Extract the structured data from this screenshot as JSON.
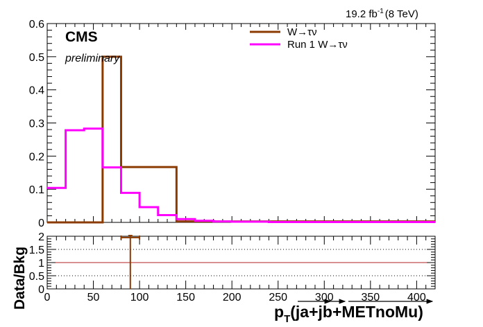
{
  "header": {
    "lumi_value": "19.2 fb",
    "lumi_exp": "-1",
    "lumi_energy": "(8 TeV)"
  },
  "labels": {
    "experiment": "CMS",
    "status": "preliminary"
  },
  "colors": {
    "series1": "#8b3a00",
    "series2": "#ff00ff",
    "ratio_line": "#b22222",
    "axis": "#000000"
  },
  "chart_data": [
    {
      "type": "histogram",
      "panel": "main",
      "x_edges": [
        0,
        20,
        40,
        60,
        80,
        100,
        120,
        140,
        160,
        180,
        200,
        220,
        240,
        260,
        280,
        300,
        320,
        340,
        360,
        380,
        400,
        420
      ],
      "xlim": [
        0,
        420
      ],
      "ylim": [
        0,
        0.6
      ],
      "yticks": [
        0,
        0.1,
        0.2,
        0.3,
        0.4,
        0.5,
        0.6
      ],
      "ytick_labels": [
        "0",
        "0.1",
        "0.2",
        "0.3",
        "0.4",
        "0.5",
        "0.6"
      ],
      "legend_position": "top-right",
      "series": [
        {
          "name": "W→τν",
          "color": "#8b3a00",
          "values": [
            0,
            0,
            0,
            0.5,
            0.167,
            0.167,
            0.167,
            0.003,
            0.003,
            0.003,
            0.003,
            0.003,
            0.003,
            0.003,
            0.003,
            0.003,
            0.003,
            0.003,
            0.003,
            0.003,
            0.003
          ]
        },
        {
          "name": "Run 1 W→τν",
          "color": "#ff00ff",
          "values": [
            0.104,
            0.278,
            0.283,
            0.166,
            0.089,
            0.046,
            0.022,
            0.01,
            0.005,
            0.003,
            0.002,
            0.002,
            0.001,
            0.001,
            0.001,
            0.001,
            0.001,
            0.001,
            0.001,
            0.001,
            0.001
          ]
        }
      ]
    },
    {
      "type": "ratio",
      "panel": "ratio",
      "ylabel": "Data/Bkg",
      "xlabel_main": "p",
      "xlabel_sub": "T",
      "xlabel_rest": "(ja+jb+METnoMu)",
      "xlim": [
        0,
        420
      ],
      "ylim": [
        0,
        2
      ],
      "xticks": [
        0,
        50,
        100,
        150,
        200,
        250,
        300,
        350,
        400
      ],
      "xtick_labels": [
        "0",
        "50",
        "100",
        "150",
        "200",
        "250",
        "300",
        "350",
        "400"
      ],
      "yticks": [
        0,
        0.5,
        1,
        1.5,
        2
      ],
      "ytick_labels": [
        "0",
        "0.5",
        "1",
        "1.5",
        "2"
      ],
      "reference_line": 1,
      "dotted_lines": [
        0.5,
        1.5
      ],
      "points": [
        {
          "x": 90,
          "y": 1.95,
          "xerr": 10,
          "ylow": 0,
          "yhigh": 2
        }
      ]
    }
  ]
}
